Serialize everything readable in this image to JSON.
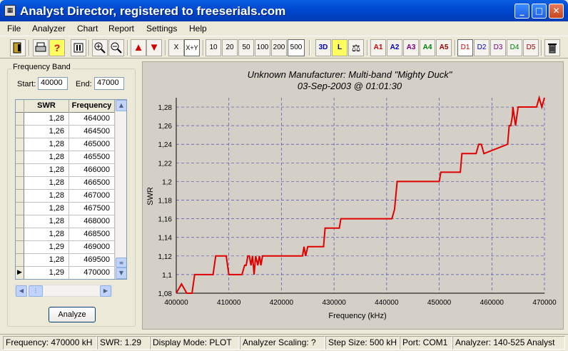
{
  "window": {
    "title": "Analyst Director, registered to freeserials.com",
    "icon": "calculator-icon",
    "controls": {
      "minimize": "_",
      "maximize": "□",
      "close": "✕"
    }
  },
  "menu": [
    "File",
    "Analyzer",
    "Chart",
    "Report",
    "Settings",
    "Help"
  ],
  "toolbar": {
    "mode_x": "X",
    "mode_xy": "X+Y",
    "steps": [
      "10",
      "20",
      "50",
      "100",
      "200",
      "500"
    ],
    "selected_step": "500",
    "view_3d": "3D",
    "view_l": "L",
    "analyzers": [
      "A1",
      "A2",
      "A3",
      "A4",
      "A5"
    ],
    "displays": [
      "D1",
      "D2",
      "D3",
      "D4",
      "D5"
    ],
    "icons": [
      "exit-icon",
      "print-icon",
      "help-icon",
      "stop-icon",
      "zoom-in-icon",
      "zoom-out-icon",
      "arrow-up-icon",
      "arrow-down-icon",
      "scale-icon",
      "trash-icon"
    ],
    "colors": {
      "a1": "#e00000",
      "a2": "#0000d0",
      "a3": "#800080",
      "a4": "#008000",
      "a5": "#a00000",
      "d1": "#e00000",
      "d2": "#0000d0",
      "d3": "#800080",
      "d4": "#008000",
      "d5": "#a00000"
    }
  },
  "freq_band": {
    "title": "Frequency Band",
    "start_label": "Start:",
    "start_value": "40000",
    "end_label": "End:",
    "end_value": "47000"
  },
  "table": {
    "headers": [
      "SWR",
      "Frequency"
    ],
    "rows": [
      [
        "1,28",
        "464000"
      ],
      [
        "1,26",
        "464500"
      ],
      [
        "1,28",
        "465000"
      ],
      [
        "1,28",
        "465500"
      ],
      [
        "1,28",
        "466000"
      ],
      [
        "1,28",
        "466500"
      ],
      [
        "1,28",
        "467000"
      ],
      [
        "1,28",
        "467500"
      ],
      [
        "1,28",
        "468000"
      ],
      [
        "1,28",
        "468500"
      ],
      [
        "1,29",
        "469000"
      ],
      [
        "1,28",
        "469500"
      ],
      [
        "1,29",
        "470000"
      ]
    ],
    "current_row": 12
  },
  "analyze_label": "Analyze",
  "chart_data": {
    "type": "line",
    "title": "Unknown Manufacturer: Multi-band \"Mighty Duck\"",
    "subtitle": "03-Sep-2003 @ 01:01:30",
    "xlabel": "Frequency (kHz)",
    "ylabel": "SWR",
    "xlim": [
      400000,
      470000
    ],
    "ylim": [
      1.08,
      1.29
    ],
    "x_ticks": [
      "400000",
      "410000",
      "420000",
      "430000",
      "440000",
      "450000",
      "460000",
      "470000"
    ],
    "y_ticks": [
      "1,08",
      "1,1",
      "1,12",
      "1,14",
      "1,16",
      "1,18",
      "1,2",
      "1,22",
      "1,24",
      "1,26",
      "1,28"
    ],
    "grid": true,
    "line_color": "#e00000",
    "series": [
      {
        "x": [
          400000,
          401000,
          402000,
          403000,
          403500,
          407000,
          407500,
          409500,
          410000,
          412500,
          413000,
          413300,
          413600,
          413900,
          414200,
          414500,
          414800,
          415100,
          415500,
          415800,
          416100,
          416400,
          416700,
          417200,
          424000,
          424300,
          424600,
          425000,
          428000,
          428300,
          431000,
          431300,
          441000,
          441500,
          442000,
          450000,
          450300,
          454000,
          454300,
          457000,
          457500,
          458000,
          458500,
          463000,
          463300,
          463600,
          463900,
          464000,
          464500,
          465000,
          465500,
          466000,
          466500,
          467000,
          467500,
          468000,
          468500,
          469000,
          469500,
          470000
        ],
        "y": [
          1.08,
          1.09,
          1.08,
          1.08,
          1.1,
          1.1,
          1.12,
          1.12,
          1.1,
          1.1,
          1.11,
          1.11,
          1.12,
          1.12,
          1.11,
          1.12,
          1.1,
          1.12,
          1.11,
          1.12,
          1.11,
          1.12,
          1.12,
          1.12,
          1.12,
          1.13,
          1.12,
          1.13,
          1.13,
          1.15,
          1.15,
          1.16,
          1.16,
          1.17,
          1.2,
          1.2,
          1.21,
          1.21,
          1.23,
          1.23,
          1.24,
          1.24,
          1.23,
          1.24,
          1.26,
          1.26,
          1.27,
          1.28,
          1.26,
          1.28,
          1.28,
          1.28,
          1.28,
          1.28,
          1.28,
          1.28,
          1.28,
          1.29,
          1.28,
          1.29
        ]
      }
    ]
  },
  "status": {
    "frequency": "Frequency: 470000 kH",
    "swr": "SWR: 1.29",
    "display_mode": "Display Mode: PLOT",
    "scaling": "Analyzer Scaling: ?",
    "step": "Step Size: 500 kH",
    "port": "Port: COM1",
    "analyzer": "Analyzer: 140-525 Analyst"
  }
}
